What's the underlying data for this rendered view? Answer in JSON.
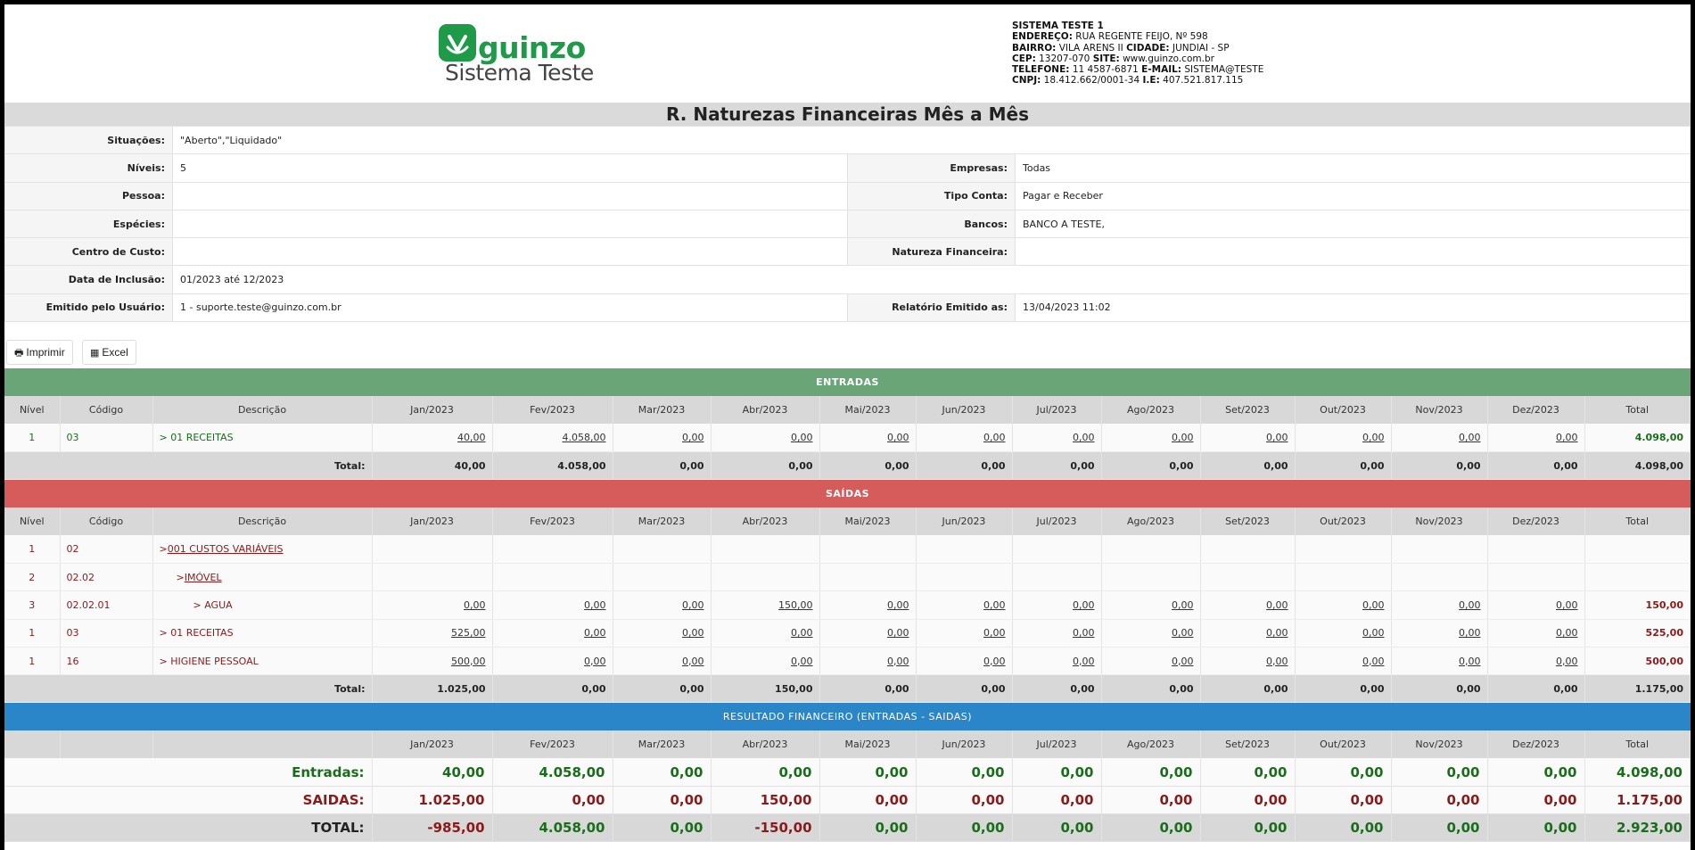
{
  "company": {
    "logo_text": "guinzo",
    "logo_subtitle": "Sistema Teste",
    "name": "SISTEMA TESTE 1",
    "endereco_label": "ENDEREÇO:",
    "endereco": "RUA REGENTE FEIJO, Nº 598",
    "bairro_label": "BAIRRO:",
    "bairro": "VILA ARENS II",
    "cidade_label": "CIDADE:",
    "cidade": "JUNDIAI - SP",
    "cep_label": "CEP:",
    "cep": "13207-070",
    "site_label": "SITE:",
    "site": "www.guinzo.com.br",
    "telefone_label": "TELEFONE:",
    "telefone": "11 4587-6871",
    "email_label": "E-MAIL:",
    "email": "SISTEMA@TESTE",
    "cnpj_label": "CNPJ:",
    "cnpj": "18.412.662/0001-34",
    "ie_label": "I.E:",
    "ie": "407.521.817.115"
  },
  "title": "R. Naturezas Financeiras Mês a Mês",
  "filters": {
    "situacoes_label": "Situações:",
    "situacoes": "\"Aberto\",\"Liquidado\"",
    "niveis_label": "Níveis:",
    "niveis": "5",
    "empresas_label": "Empresas:",
    "empresas": "Todas",
    "pessoa_label": "Pessoa:",
    "pessoa": "",
    "tipo_conta_label": "Tipo Conta:",
    "tipo_conta": "Pagar e Receber",
    "especies_label": "Espécies:",
    "especies": "",
    "bancos_label": "Bancos:",
    "bancos": "BANCO A TESTE,",
    "centro_custo_label": "Centro de Custo:",
    "centro_custo": "",
    "natureza_label": "Natureza Financeira:",
    "natureza": "",
    "data_inclusao_label": "Data de Inclusão:",
    "data_inclusao": "01/2023 até 12/2023",
    "usuario_label": "Emitido pelo Usuário:",
    "usuario": "1 - suporte.teste@guinzo.com.br",
    "emitido_label": "Relatório Emitido as:",
    "emitido": "13/04/2023 11:02"
  },
  "buttons": {
    "print": "Imprimir",
    "excel": "Excel"
  },
  "columns": {
    "nivel": "Nível",
    "codigo": "Código",
    "descricao": "Descrição",
    "months": [
      "Jan/2023",
      "Fev/2023",
      "Mar/2023",
      "Abr/2023",
      "Mai/2023",
      "Jun/2023",
      "Jul/2023",
      "Ago/2023",
      "Set/2023",
      "Out/2023",
      "Nov/2023",
      "Dez/2023"
    ],
    "total": "Total"
  },
  "entradas": {
    "band": "ENTRADAS",
    "rows": [
      {
        "nivel": "1",
        "codigo": "03",
        "descricao": "> 01 RECEITAS",
        "values": [
          "40,00",
          "4.058,00",
          "0,00",
          "0,00",
          "0,00",
          "0,00",
          "0,00",
          "0,00",
          "0,00",
          "0,00",
          "0,00",
          "0,00"
        ],
        "total": "4.098,00"
      }
    ],
    "total_label": "Total:",
    "totals": [
      "40,00",
      "4.058,00",
      "0,00",
      "0,00",
      "0,00",
      "0,00",
      "0,00",
      "0,00",
      "0,00",
      "0,00",
      "0,00",
      "0,00"
    ],
    "grand_total": "4.098,00"
  },
  "saidas": {
    "band": "SAÍDAS",
    "rows": [
      {
        "nivel": "1",
        "codigo": "02",
        "prefix": ">",
        "descricao": "001 CUSTOS VARIÁVEIS",
        "indent": 0,
        "values": [],
        "total": ""
      },
      {
        "nivel": "2",
        "codigo": "02.02",
        "prefix": ">",
        "descricao": "IMÓVEL",
        "indent": 1,
        "values": [],
        "total": ""
      },
      {
        "nivel": "3",
        "codigo": "02.02.01",
        "prefix": "",
        "descricao": "> AGUA",
        "indent": 2,
        "values": [
          "0,00",
          "0,00",
          "0,00",
          "150,00",
          "0,00",
          "0,00",
          "0,00",
          "0,00",
          "0,00",
          "0,00",
          "0,00",
          "0,00"
        ],
        "total": "150,00"
      },
      {
        "nivel": "1",
        "codigo": "03",
        "prefix": "",
        "descricao": "> 01 RECEITAS",
        "indent": 0,
        "values": [
          "525,00",
          "0,00",
          "0,00",
          "0,00",
          "0,00",
          "0,00",
          "0,00",
          "0,00",
          "0,00",
          "0,00",
          "0,00",
          "0,00"
        ],
        "total": "525,00"
      },
      {
        "nivel": "1",
        "codigo": "16",
        "prefix": "",
        "descricao": "> HIGIENE PESSOAL",
        "indent": 0,
        "values": [
          "500,00",
          "0,00",
          "0,00",
          "0,00",
          "0,00",
          "0,00",
          "0,00",
          "0,00",
          "0,00",
          "0,00",
          "0,00",
          "0,00"
        ],
        "total": "500,00"
      }
    ],
    "total_label": "Total:",
    "totals": [
      "1.025,00",
      "0,00",
      "0,00",
      "150,00",
      "0,00",
      "0,00",
      "0,00",
      "0,00",
      "0,00",
      "0,00",
      "0,00",
      "0,00"
    ],
    "grand_total": "1.175,00"
  },
  "resultado": {
    "band": "RESULTADO FINANCEIRO (ENTRADAS - SAIDAS)",
    "entradas_label": "Entradas:",
    "entradas": [
      "40,00",
      "4.058,00",
      "0,00",
      "0,00",
      "0,00",
      "0,00",
      "0,00",
      "0,00",
      "0,00",
      "0,00",
      "0,00",
      "0,00"
    ],
    "entradas_total": "4.098,00",
    "saidas_label": "SAIDAS:",
    "saidas": [
      "1.025,00",
      "0,00",
      "0,00",
      "150,00",
      "0,00",
      "0,00",
      "0,00",
      "0,00",
      "0,00",
      "0,00",
      "0,00",
      "0,00"
    ],
    "saidas_total": "1.175,00",
    "total_label": "TOTAL:",
    "total": [
      "-985,00",
      "4.058,00",
      "0,00",
      "-150,00",
      "0,00",
      "0,00",
      "0,00",
      "0,00",
      "0,00",
      "0,00",
      "0,00",
      "0,00"
    ],
    "total_total": "2.923,00"
  },
  "colors": {
    "green": "#6aa577",
    "red": "#d65c5c",
    "blue": "#2a86c9",
    "brand": "#1f9a48"
  }
}
